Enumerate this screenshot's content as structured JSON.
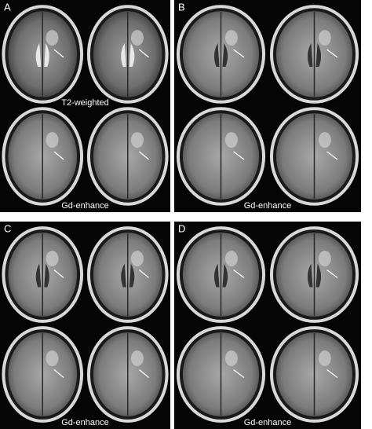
{
  "panels": [
    {
      "label": "A",
      "captions": [
        "T2-weighted",
        "Gd-enhance"
      ]
    },
    {
      "label": "B",
      "captions": [
        "Gd-enhance"
      ]
    },
    {
      "label": "C",
      "captions": [
        "Gd-enhance"
      ]
    },
    {
      "label": "D",
      "captions": [
        "Gd-enhance"
      ]
    }
  ]
}
